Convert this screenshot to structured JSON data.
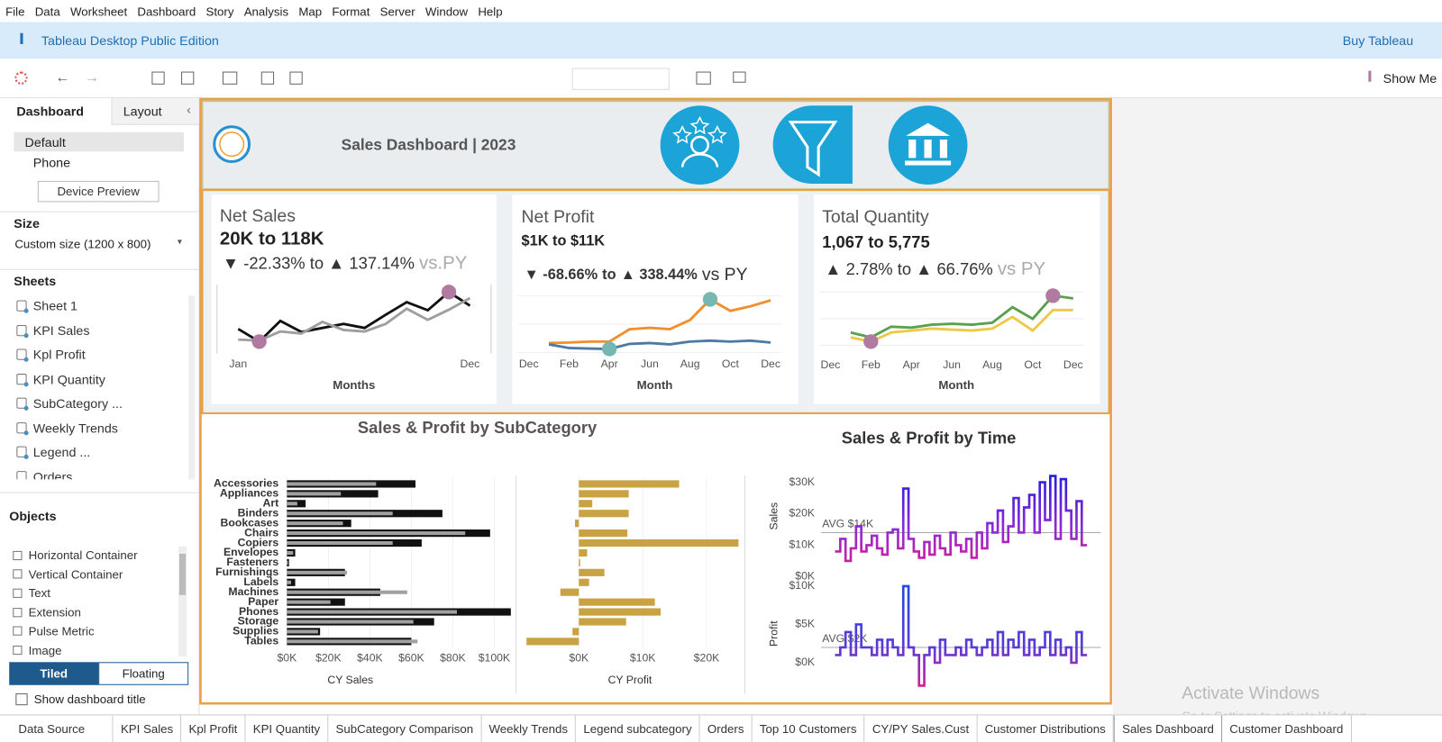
{
  "menu": [
    "File",
    "Data",
    "Worksheet",
    "Dashboard",
    "Story",
    "Analysis",
    "Map",
    "Format",
    "Server",
    "Window",
    "Help"
  ],
  "app_bar": {
    "title": "Tableau Desktop Public Edition",
    "action": "Buy Tableau"
  },
  "toolbar": {
    "show_me": "Show Me"
  },
  "side_panel": {
    "tabs": [
      "Dashboard",
      "Layout"
    ],
    "devices": [
      "Default",
      "Phone"
    ],
    "device_preview": "Device Preview",
    "size_heading": "Size",
    "size_value": "Custom size (1200 x 800)",
    "sheets_heading": "Sheets",
    "sheets": [
      "Sheet 1",
      "KPI Sales",
      "Kpl Profit",
      "KPI Quantity",
      "SubCategory ...",
      "Weekly Trends",
      "Legend ...",
      "Orders"
    ],
    "objects_heading": "Objects",
    "objects": [
      "Horizontal Container",
      "Vertical Container",
      "Text",
      "Extension",
      "Pulse Metric",
      "Image"
    ],
    "layout_modes": [
      "Tiled",
      "Floating"
    ],
    "show_title": "Show dashboard title"
  },
  "dashboard": {
    "title": "Sales Dashboard | 2023",
    "kpis": [
      {
        "title": "Net Sales",
        "range": "20K to 118K",
        "low": "▼ -22.33%",
        "connector": "to",
        "high": "▲ 137.14%",
        "reference": "vs.PY",
        "x_label": "Months",
        "chart": {
          "type": "line",
          "marker_color": "#b07aa1",
          "categories": [
            "Jan",
            null,
            null,
            null,
            null,
            null,
            null,
            null,
            null,
            null,
            null,
            "Dec"
          ],
          "series": [
            {
              "color": "#111111",
              "values": [
                45,
                20,
                61,
                39,
                47,
                55,
                47,
                73,
                98,
                82,
                118,
                91
              ]
            },
            {
              "color": "#9e9e9e",
              "values": [
                24,
                22,
                40,
                36,
                59,
                43,
                40,
                55,
                85,
                63,
                83,
                106
              ]
            }
          ]
        }
      },
      {
        "title": "Net Profit",
        "range": "$1K to $11K",
        "low": "▼ -68.66%",
        "connector": "to",
        "high": "▲ 338.44%",
        "reference": "vs PY",
        "x_label": "Month",
        "chart": {
          "type": "line",
          "marker_color": "#76b7b2",
          "categories": [
            "Dec",
            null,
            "Feb",
            null,
            "Apr",
            null,
            "Jun",
            null,
            "Aug",
            null,
            "Oct",
            null,
            "Dec"
          ],
          "series": [
            {
              "color": "#f28e2b",
              "values": [
                null,
                1.5,
                1.6,
                1.8,
                1.8,
                4.5,
                4.8,
                4.5,
                6.5,
                11,
                8.5,
                9.5,
                10.8
              ]
            },
            {
              "color": "#4e79a7",
              "values": [
                null,
                1.2,
                0.4,
                0.3,
                0.2,
                1.3,
                1.5,
                1.2,
                1.8,
                2.0,
                1.8,
                2.0,
                1.6
              ]
            }
          ]
        }
      },
      {
        "title": "Total Quantity",
        "range": "1,067 to 5,775",
        "low": "▲ 2.78%",
        "connector": "to",
        "high": "▲ 66.76%",
        "reference": "vs PY",
        "x_label": "Month",
        "chart": {
          "type": "line",
          "marker_color": "#b07aa1",
          "categories": [
            "Dec",
            null,
            "Feb",
            null,
            "Apr",
            null,
            "Jun",
            null,
            "Aug",
            null,
            "Oct",
            null,
            "Dec"
          ],
          "series": [
            {
              "color": "#59a14f",
              "values": [
                null,
                2000,
                1500,
                2600,
                2500,
                2800,
                2900,
                2800,
                3000,
                4600,
                3400,
                5775,
                5500
              ]
            },
            {
              "color": "#edc948",
              "values": [
                null,
                1500,
                1067,
                2000,
                2200,
                2400,
                2300,
                2200,
                2400,
                3600,
                2200,
                4300,
                4300
              ]
            }
          ]
        }
      }
    ],
    "subcategory_chart": {
      "type": "bar",
      "title": "Sales & Profit by SubCategory",
      "categories": [
        "Accessories",
        "Appliances",
        "Art",
        "Binders",
        "Bookcases",
        "Chairs",
        "Copiers",
        "Envelopes",
        "Fasteners",
        "Furnishings",
        "Labels",
        "Machines",
        "Paper",
        "Phones",
        "Storage",
        "Supplies",
        "Tables"
      ],
      "sales": {
        "x_label": "CY Sales",
        "xlim": [
          0,
          110
        ],
        "xticks": [
          {
            "value": 0,
            "label": "$0K"
          },
          {
            "value": 20,
            "label": "$20K"
          },
          {
            "value": 40,
            "label": "$40K"
          },
          {
            "value": 60,
            "label": "$60K"
          },
          {
            "value": 80,
            "label": "$80K"
          },
          {
            "value": 100,
            "label": "$100K"
          }
        ],
        "series": [
          {
            "color": "#111111",
            "values": [
              62,
              44,
              9,
              75,
              31,
              98,
              65,
              4,
              1,
              28,
              4,
              45,
              28,
              108,
              71,
              16,
              60
            ]
          },
          {
            "color": "#a0a0a0",
            "values": [
              43,
              26,
              5,
              51,
              27,
              86,
              51,
              3,
              0.5,
              29,
              2,
              58,
              21,
              82,
              61,
              15,
              63
            ]
          }
        ]
      },
      "profit": {
        "x_label": "CY Profit",
        "xlim": [
          -10,
          26
        ],
        "xticks": [
          {
            "value": 0,
            "label": "$0K"
          },
          {
            "value": 10,
            "label": "$10K"
          },
          {
            "value": 20,
            "label": "$20K"
          }
        ],
        "color": "#c9a243",
        "values": [
          15.7,
          7.8,
          2.1,
          7.8,
          -0.6,
          7.6,
          25,
          1.3,
          0.2,
          4.0,
          1.6,
          -2.9,
          11.9,
          12.8,
          7.4,
          -1.0,
          -8.2
        ]
      }
    },
    "time_chart": {
      "type": "line",
      "title": "Sales & Profit by Time",
      "sales": {
        "y_label": "Sales",
        "ylim": [
          0,
          35
        ],
        "yticks": [
          {
            "value": 0,
            "label": "$0K"
          },
          {
            "value": 10,
            "label": "$10K"
          },
          {
            "value": 20,
            "label": "$20K"
          },
          {
            "value": 30,
            "label": "$30K"
          }
        ],
        "avg": 14,
        "avg_label": "AVG $14K",
        "values": [
          8,
          12,
          5,
          9,
          16,
          8,
          10,
          13,
          9,
          7,
          14,
          15,
          9,
          28,
          12,
          8,
          6,
          11,
          7,
          13,
          9,
          7,
          14,
          10,
          8,
          12,
          6,
          14,
          9,
          17,
          14,
          21,
          11,
          16,
          25,
          14,
          22,
          26,
          14,
          30,
          18,
          32,
          12,
          31,
          21,
          12,
          24,
          10
        ]
      },
      "profit": {
        "y_label": "Profit",
        "ylim": [
          -4,
          11
        ],
        "yticks": [
          {
            "value": 0,
            "label": "$0K"
          },
          {
            "value": 5,
            "label": "$5K"
          },
          {
            "value": 10,
            "label": "$10K"
          }
        ],
        "avg": 2,
        "avg_label": "AVG $2K",
        "values": [
          1,
          2,
          4,
          1,
          5,
          2,
          2,
          1,
          3,
          1,
          3,
          2,
          1,
          10,
          2,
          1,
          -3,
          1,
          2,
          0,
          3,
          1,
          1,
          2,
          1,
          3,
          2,
          1,
          2,
          3,
          1,
          4,
          1,
          3,
          2,
          4,
          1,
          3,
          1,
          2,
          4,
          1,
          3,
          1,
          2,
          0,
          4,
          1
        ]
      }
    }
  },
  "sheet_tabs": [
    {
      "label": "Data Source"
    },
    {
      "label": "KPI Sales"
    },
    {
      "label": "Kpl Profit"
    },
    {
      "label": "KPI Quantity"
    },
    {
      "label": "SubCategory Comparison"
    },
    {
      "label": "Weekly Trends"
    },
    {
      "label": "Legend subcategory"
    },
    {
      "label": "Orders"
    },
    {
      "label": "Top 10 Customers"
    },
    {
      "label": "CY/PY  Sales.Cust"
    },
    {
      "label": "Customer Distributions"
    },
    {
      "label": "Sales Dashboard",
      "active": true
    },
    {
      "label": "Customer Dashboard"
    }
  ],
  "watermark": {
    "title": "Activate Windows",
    "subtitle": "Go to Settings to activate Windows."
  }
}
